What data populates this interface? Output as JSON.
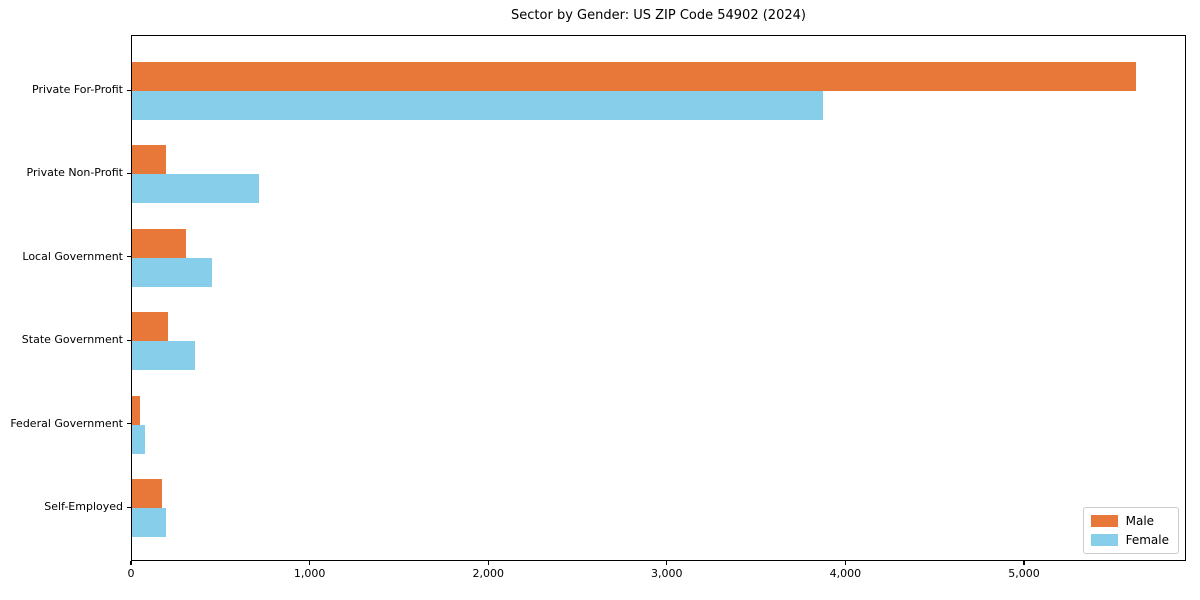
{
  "chart_data": {
    "type": "bar",
    "orientation": "horizontal",
    "title": "Sector by Gender: US ZIP Code 54902 (2024)",
    "categories": [
      "Private For-Profit",
      "Private Non-Profit",
      "Local Government",
      "State Government",
      "Federal Government",
      "Self-Employed"
    ],
    "series": [
      {
        "name": "Male",
        "color": "#E8773A",
        "values": [
          5620,
          190,
          300,
          200,
          45,
          165
        ]
      },
      {
        "name": "Female",
        "color": "#87CEEB",
        "values": [
          3870,
          710,
          450,
          355,
          70,
          190
        ]
      }
    ],
    "xlabel": "",
    "ylabel": "",
    "xlim": [
      0,
      5907
    ],
    "xticks": [
      0,
      1000,
      2000,
      3000,
      4000,
      5000
    ],
    "xtick_labels": [
      "0",
      "1,000",
      "2,000",
      "3,000",
      "4,000",
      "5,000"
    ],
    "grid": false,
    "legend_position": "lower right",
    "background_color": "#ffffff",
    "spine_color": "#000000"
  }
}
